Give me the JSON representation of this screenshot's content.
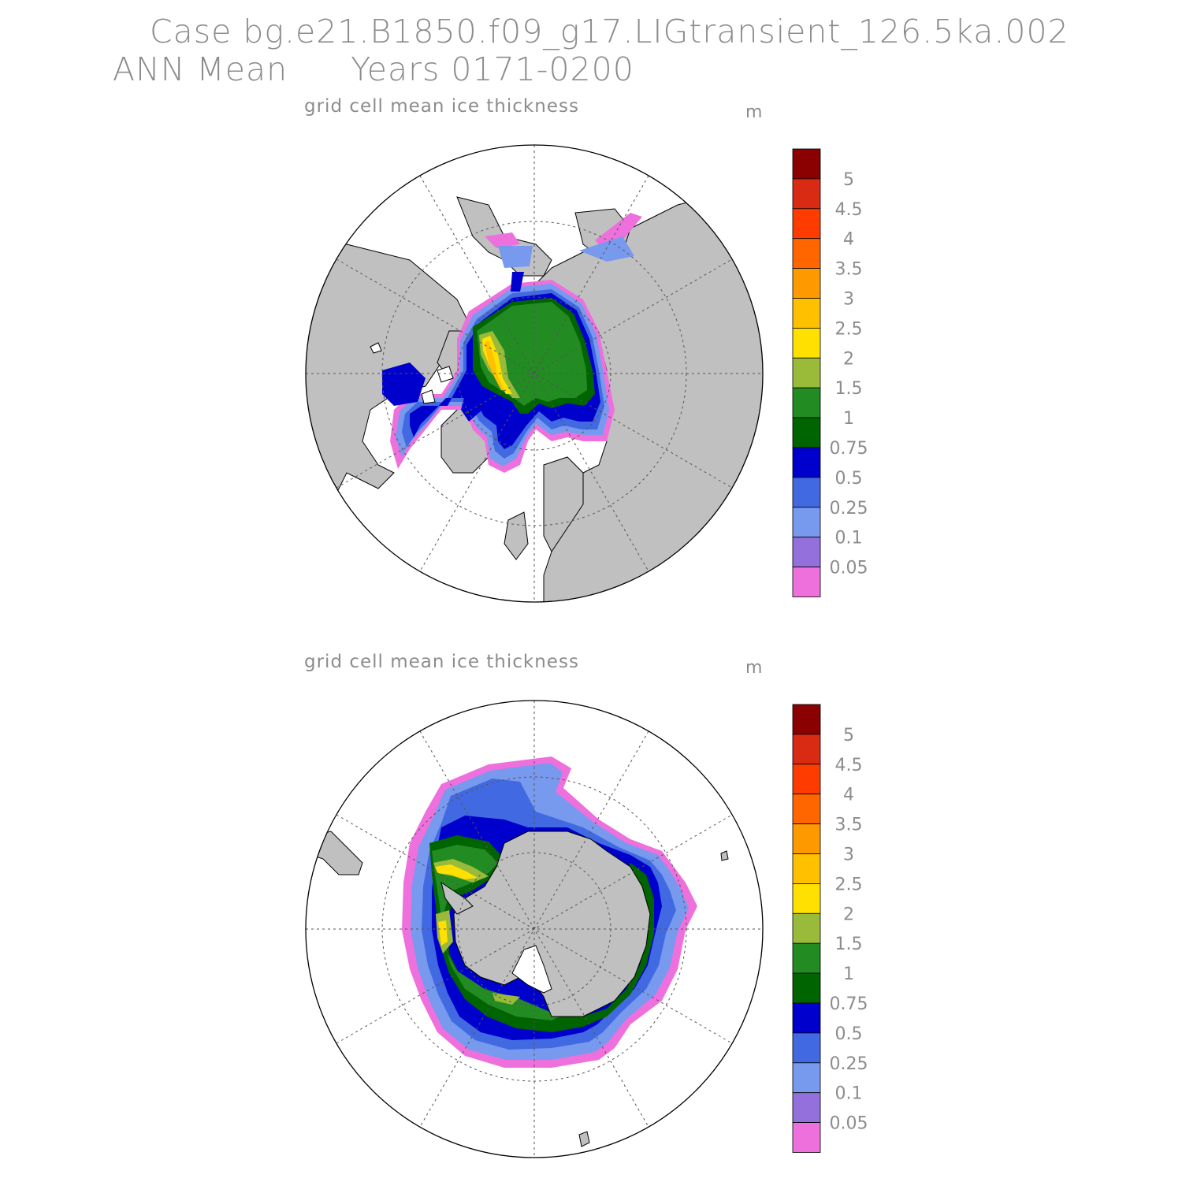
{
  "header": {
    "case_line": "Case bg.e21.B1850.f09_g17.LIGtransient_126.5ka.002",
    "period_label": "ANN Mean",
    "years_label": "Years 0171-0200"
  },
  "panels": [
    {
      "title": "grid cell mean ice thickness",
      "units": "m",
      "hemisphere": "north"
    },
    {
      "title": "grid cell mean ice thickness",
      "units": "m",
      "hemisphere": "south"
    }
  ],
  "colorbar": {
    "labels": [
      "5",
      "4.5",
      "4",
      "3.5",
      "3",
      "2.5",
      "2",
      "1.5",
      "1",
      "0.75",
      "0.5",
      "0.25",
      "0.1",
      "0.05"
    ],
    "colors": [
      "#8b0000",
      "#d92b14",
      "#ff3c00",
      "#ff6600",
      "#ff9900",
      "#ffc000",
      "#ffe000",
      "#9aba3a",
      "#228b22",
      "#006400",
      "#0000cd",
      "#4169e1",
      "#7799ee",
      "#9370db",
      "#ee70dd"
    ]
  },
  "map_colors": {
    "land": "#c0c0c0",
    "ocean": "#ffffff",
    "grid": "#555555",
    "coast": "#000000"
  }
}
